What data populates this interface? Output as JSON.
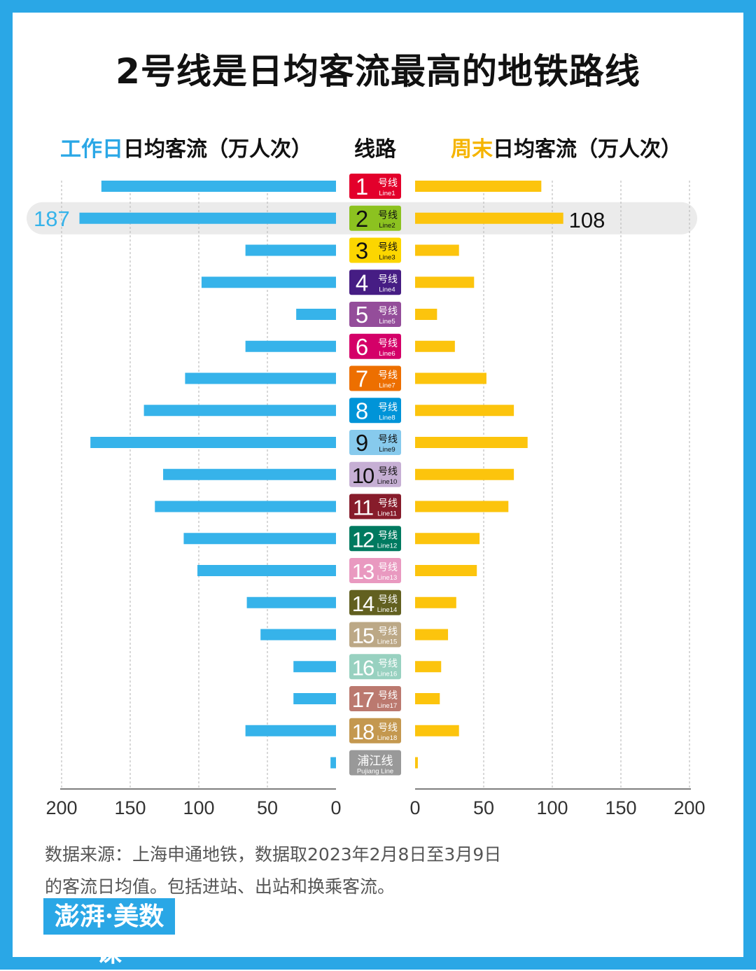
{
  "title": "2号线是日均客流最高的地铁路线",
  "headers": {
    "left_highlight": "工作日",
    "left_rest": "日均客流（万人次）",
    "center": "线路",
    "right_highlight": "周末",
    "right_rest": "日均客流（万人次）"
  },
  "footnote": {
    "line1": "数据来源：上海申通地铁，数据取2023年2月8日至3月9日",
    "line2": "的客流日均值。包括进站、出站和换乘客流。"
  },
  "logo_text": "澎湃·美数课",
  "chart_data": {
    "type": "bar",
    "orientation": "horizontal-butterfly",
    "title": "2号线是日均客流最高的地铁路线",
    "left_axis": {
      "label": "工作日日均客流（万人次）",
      "range": [
        0,
        200
      ],
      "ticks": [
        200,
        150,
        100,
        50,
        0
      ]
    },
    "right_axis": {
      "label": "周末日均客流（万人次）",
      "range": [
        0,
        200
      ],
      "ticks": [
        0,
        50,
        100,
        150,
        200
      ]
    },
    "colors": {
      "weekday": "#36b3ea",
      "weekend": "#fcc40d",
      "highlight_band": "#ebebeb",
      "highlight_label": "#36b3ea"
    },
    "highlight": {
      "index": 1,
      "weekday_label": "187",
      "weekend_label": "108"
    },
    "categories": [
      {
        "num": "1",
        "cn": "号线",
        "en": "Line1",
        "color": "#e3002b",
        "text_color": "#ffffff"
      },
      {
        "num": "2",
        "cn": "号线",
        "en": "Line2",
        "color": "#8cc220",
        "text_color": "#111111"
      },
      {
        "num": "3",
        "cn": "号线",
        "en": "Line3",
        "color": "#fcd600",
        "text_color": "#111111"
      },
      {
        "num": "4",
        "cn": "号线",
        "en": "Line4",
        "color": "#461d84",
        "text_color": "#ffffff"
      },
      {
        "num": "5",
        "cn": "号线",
        "en": "Line5",
        "color": "#944d9a",
        "text_color": "#ffffff"
      },
      {
        "num": "6",
        "cn": "号线",
        "en": "Line6",
        "color": "#d40068",
        "text_color": "#ffffff"
      },
      {
        "num": "7",
        "cn": "号线",
        "en": "Line7",
        "color": "#ed6f00",
        "text_color": "#ffffff"
      },
      {
        "num": "8",
        "cn": "号线",
        "en": "Line8",
        "color": "#0094d8",
        "text_color": "#ffffff"
      },
      {
        "num": "9",
        "cn": "号线",
        "en": "Line9",
        "color": "#87caed",
        "text_color": "#111111"
      },
      {
        "num": "10",
        "cn": "号线",
        "en": "Line10",
        "color": "#c6afd4",
        "text_color": "#111111"
      },
      {
        "num": "11",
        "cn": "号线",
        "en": "Line11",
        "color": "#871c2b",
        "text_color": "#ffffff"
      },
      {
        "num": "12",
        "cn": "号线",
        "en": "Line12",
        "color": "#007a60",
        "text_color": "#ffffff"
      },
      {
        "num": "13",
        "cn": "号线",
        "en": "Line13",
        "color": "#e999c0",
        "text_color": "#ffffff"
      },
      {
        "num": "14",
        "cn": "号线",
        "en": "Line14",
        "color": "#626020",
        "text_color": "#ffffff"
      },
      {
        "num": "15",
        "cn": "号线",
        "en": "Line15",
        "color": "#bca886",
        "text_color": "#ffffff"
      },
      {
        "num": "16",
        "cn": "号线",
        "en": "Line16",
        "color": "#98d1c0",
        "text_color": "#ffffff"
      },
      {
        "num": "17",
        "cn": "号线",
        "en": "Line17",
        "color": "#bb796f",
        "text_color": "#ffffff"
      },
      {
        "num": "18",
        "cn": "号线",
        "en": "Line18",
        "color": "#c4984f",
        "text_color": "#ffffff"
      },
      {
        "num": "",
        "cn": "浦江线",
        "en": "Pujiang Line",
        "color": "#999999",
        "text_color": "#ffffff"
      }
    ],
    "series": [
      {
        "name": "工作日",
        "values": [
          171,
          187,
          66,
          98,
          29,
          66,
          110,
          140,
          179,
          126,
          132,
          111,
          101,
          65,
          55,
          31,
          31,
          66,
          4
        ]
      },
      {
        "name": "周末",
        "values": [
          92,
          108,
          32,
          43,
          16,
          29,
          52,
          72,
          82,
          72,
          68,
          47,
          45,
          30,
          24,
          19,
          18,
          32,
          2
        ]
      }
    ]
  }
}
